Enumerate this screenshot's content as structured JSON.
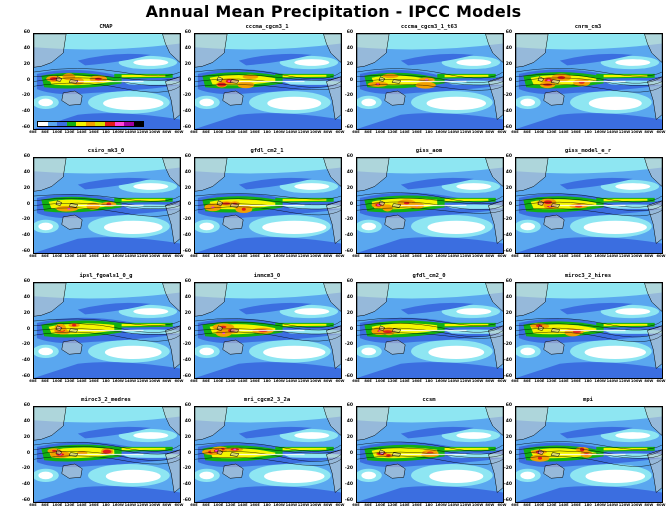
{
  "title": "Annual Mean Precipitation - IPCC Models",
  "panels": [
    {
      "name": "CMAP"
    },
    {
      "name": "cccma_cgcm3_1"
    },
    {
      "name": "cccma_cgcm3_1_t63"
    },
    {
      "name": "cnrm_cm3"
    },
    {
      "name": "csiro_mk3_0"
    },
    {
      "name": "gfdl_cm2_1"
    },
    {
      "name": "giss_aom"
    },
    {
      "name": "giss_model_e_r"
    },
    {
      "name": "ipsl_fgoals1_0_g"
    },
    {
      "name": "inmcm3_0"
    },
    {
      "name": "gfdl_cm2_0"
    },
    {
      "name": "miroc3_2_hires"
    },
    {
      "name": "miroc3_2_medres"
    },
    {
      "name": "mri_cgcm2_3_2a"
    },
    {
      "name": "ccsm"
    },
    {
      "name": "mpi"
    }
  ],
  "axes": {
    "lat_labels": [
      "60",
      "40",
      "20",
      "0",
      "-20",
      "-40",
      "-60"
    ],
    "lon_labels": [
      "60E",
      "80E",
      "100E",
      "120E",
      "140E",
      "160E",
      "180",
      "160W",
      "140W",
      "120W",
      "100W",
      "80W",
      "60W"
    ]
  },
  "colorbar_colors": [
    "#ffffff",
    "#5aa7ef",
    "#3b6ee0",
    "#12b012",
    "#f5f500",
    "#f3a000",
    "#d8e000",
    "#e21b1b",
    "#ff44dd",
    "#a000a0",
    "#000000"
  ],
  "colors": {
    "dry": "#ffffff",
    "light": "#8ee6f2",
    "moderate": "#5aa7ef",
    "wet_blue": "#3b6ee0",
    "green": "#12b012",
    "yellow": "#f5f500",
    "orange": "#f3a000",
    "red": "#e21b1b",
    "magenta": "#ff44dd",
    "land": "#c8c8c8"
  }
}
